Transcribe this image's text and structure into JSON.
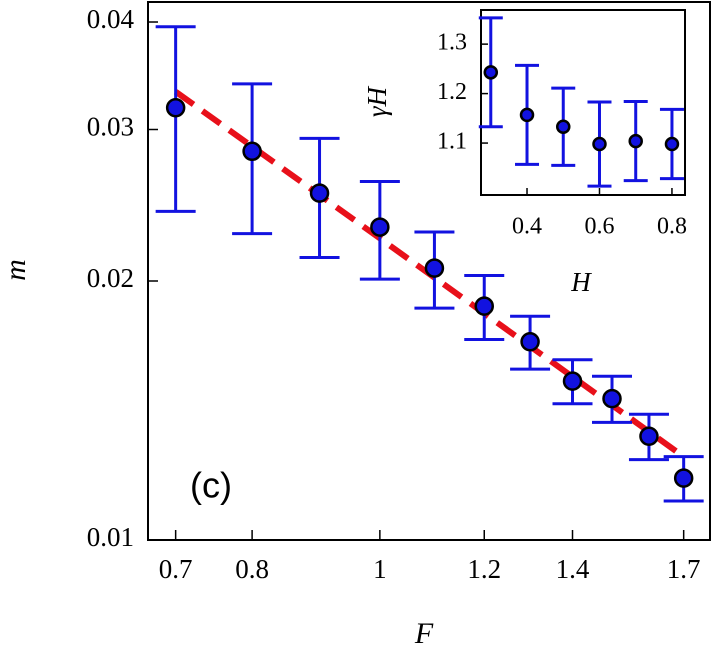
{
  "chart_data": [
    {
      "type": "scatter",
      "xlabel": "F",
      "ylabel": "m",
      "annotation": "(c)",
      "xlog": true,
      "ylog": true,
      "xlim": [
        0.667,
        1.78
      ],
      "ylim": [
        0.01,
        0.0422
      ],
      "xticks": [
        0.7,
        0.8,
        1,
        1.2,
        1.4,
        1.7
      ],
      "yticks": [
        0.01,
        0.02,
        0.03,
        0.04
      ],
      "x": [
        0.7,
        0.8,
        0.9,
        1.0,
        1.1,
        1.2,
        1.3,
        1.4,
        1.5,
        1.6,
        1.7
      ],
      "series": [
        {
          "color": "#1212e0",
          "values": [
            0.0318,
            0.0283,
            0.0253,
            0.0231,
            0.0207,
            0.0187,
            0.017,
            0.0153,
            0.0146,
            0.0132,
            0.0118
          ],
          "errors": [
            0.0077,
            0.0056,
            0.004,
            0.003,
            0.0021,
            0.0016,
            0.0012,
            0.0009,
            0.0009,
            0.0008,
            0.0007
          ]
        }
      ],
      "fit": {
        "color": "#e8101a",
        "x": [
          0.7,
          1.7
        ],
        "values": [
          0.0332,
          0.0125
        ]
      }
    },
    {
      "type": "scatter",
      "xlabel": "H",
      "ylabel": "γH",
      "xlog": false,
      "ylog": false,
      "xlim": [
        0.273,
        0.836
      ],
      "ylim": [
        0.995,
        1.369
      ],
      "xticks": [
        0.4,
        0.6,
        0.8
      ],
      "yticks": [
        1.1,
        1.2,
        1.3
      ],
      "x": [
        0.3,
        0.4,
        0.5,
        0.6,
        0.7,
        0.8
      ],
      "series": [
        {
          "color": "#1212e0",
          "values": [
            1.243,
            1.157,
            1.133,
            1.098,
            1.104,
            1.098
          ],
          "errors": [
            0.11,
            0.1,
            0.078,
            0.085,
            0.08,
            0.07
          ]
        }
      ]
    }
  ]
}
